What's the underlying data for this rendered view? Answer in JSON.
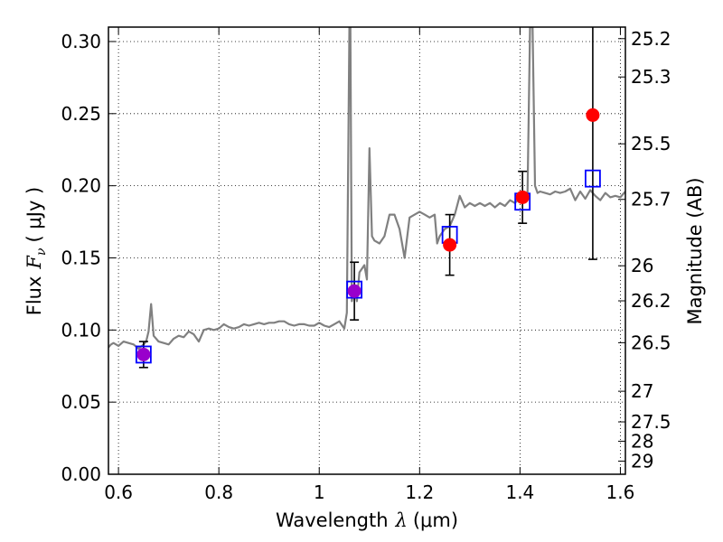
{
  "chart_data": {
    "type": "scatter",
    "title": "",
    "xlabel": "Wavelength",
    "xlabel_math": "λ",
    "xlabel_unit": "(μm)",
    "ylabel": "Flux",
    "ylabel_math": "F",
    "ylabel_sub": "ν",
    "ylabel_unit": "( μJy )",
    "y2label": "Magnitude (AB)",
    "xlim": [
      0.58,
      1.61
    ],
    "ylim": [
      0.0,
      0.31
    ],
    "grid": true,
    "x_ticks": [
      0.6,
      0.8,
      1.0,
      1.2,
      1.4,
      1.6
    ],
    "x_tick_labels": [
      "0.6",
      "0.8",
      "1",
      "1.2",
      "1.4",
      "1.6"
    ],
    "y_ticks": [
      0.0,
      0.05,
      0.1,
      0.15,
      0.2,
      0.25,
      0.3
    ],
    "y_tick_labels": [
      "0.00",
      "0.05",
      "0.10",
      "0.15",
      "0.20",
      "0.25",
      "0.30"
    ],
    "mag_ticks": [
      25.2,
      25.3,
      25.5,
      25.7,
      26,
      26.2,
      26.5,
      27,
      27.5,
      28,
      29
    ],
    "mag_tick_labels": [
      "25.2",
      "25.3",
      "25.5",
      "25.7",
      "26",
      "26.2",
      "26.5",
      "27",
      "27.5",
      "28",
      "29"
    ],
    "colors": {
      "model": "#808080",
      "observed": "#ff0000",
      "model_band": "#0000ff",
      "overlap": "#9900cc"
    },
    "spectrum": {
      "name": "",
      "x": [
        0.58,
        0.585,
        0.59,
        0.6,
        0.61,
        0.62,
        0.63,
        0.64,
        0.65,
        0.655,
        0.66,
        0.665,
        0.67,
        0.68,
        0.69,
        0.7,
        0.71,
        0.72,
        0.73,
        0.74,
        0.75,
        0.76,
        0.77,
        0.78,
        0.79,
        0.8,
        0.81,
        0.82,
        0.83,
        0.84,
        0.85,
        0.86,
        0.87,
        0.88,
        0.89,
        0.9,
        0.91,
        0.92,
        0.93,
        0.94,
        0.95,
        0.96,
        0.97,
        0.98,
        0.99,
        1.0,
        1.01,
        1.02,
        1.03,
        1.04,
        1.05,
        1.055,
        1.06,
        1.062,
        1.065,
        1.067,
        1.07,
        1.075,
        1.08,
        1.09,
        1.095,
        1.1,
        1.105,
        1.11,
        1.12,
        1.13,
        1.14,
        1.15,
        1.16,
        1.17,
        1.18,
        1.19,
        1.2,
        1.21,
        1.22,
        1.23,
        1.235,
        1.24,
        1.25,
        1.26,
        1.27,
        1.28,
        1.29,
        1.3,
        1.31,
        1.32,
        1.33,
        1.34,
        1.35,
        1.36,
        1.37,
        1.38,
        1.39,
        1.4,
        1.41,
        1.415,
        1.42,
        1.425,
        1.43,
        1.435,
        1.44,
        1.45,
        1.46,
        1.47,
        1.48,
        1.49,
        1.5,
        1.51,
        1.52,
        1.53,
        1.54,
        1.55,
        1.56,
        1.57,
        1.58,
        1.59,
        1.6,
        1.61
      ],
      "y": [
        0.088,
        0.09,
        0.091,
        0.089,
        0.092,
        0.091,
        0.09,
        0.087,
        0.09,
        0.092,
        0.099,
        0.118,
        0.096,
        0.092,
        0.091,
        0.09,
        0.094,
        0.096,
        0.095,
        0.099,
        0.097,
        0.092,
        0.1,
        0.101,
        0.1,
        0.101,
        0.104,
        0.102,
        0.101,
        0.102,
        0.104,
        0.103,
        0.104,
        0.105,
        0.104,
        0.105,
        0.105,
        0.106,
        0.106,
        0.104,
        0.103,
        0.104,
        0.104,
        0.103,
        0.103,
        0.105,
        0.103,
        0.102,
        0.104,
        0.106,
        0.101,
        0.112,
        0.31,
        0.31,
        0.12,
        0.125,
        0.13,
        0.12,
        0.14,
        0.145,
        0.135,
        0.226,
        0.165,
        0.162,
        0.16,
        0.165,
        0.18,
        0.18,
        0.17,
        0.15,
        0.178,
        0.18,
        0.182,
        0.18,
        0.178,
        0.18,
        0.16,
        0.165,
        0.17,
        0.172,
        0.18,
        0.193,
        0.185,
        0.188,
        0.186,
        0.188,
        0.186,
        0.188,
        0.185,
        0.188,
        0.186,
        0.19,
        0.188,
        0.192,
        0.19,
        0.195,
        0.31,
        0.31,
        0.2,
        0.195,
        0.196,
        0.195,
        0.194,
        0.196,
        0.195,
        0.196,
        0.198,
        0.19,
        0.196,
        0.191,
        0.197,
        0.193,
        0.19,
        0.195,
        0.192,
        0.193,
        0.192,
        0.196
      ]
    },
    "model_points": {
      "name": "",
      "x": [
        0.65,
        1.07,
        1.26,
        1.405,
        1.545
      ],
      "y": [
        0.083,
        0.128,
        0.166,
        0.189,
        0.205
      ]
    },
    "observed_points": {
      "name": "",
      "x": [
        0.65,
        1.07,
        1.26,
        1.405,
        1.545
      ],
      "y": [
        0.083,
        0.127,
        0.159,
        0.192,
        0.249
      ],
      "yerr": [
        0.009,
        0.02,
        0.021,
        0.018,
        0.1
      ]
    }
  }
}
